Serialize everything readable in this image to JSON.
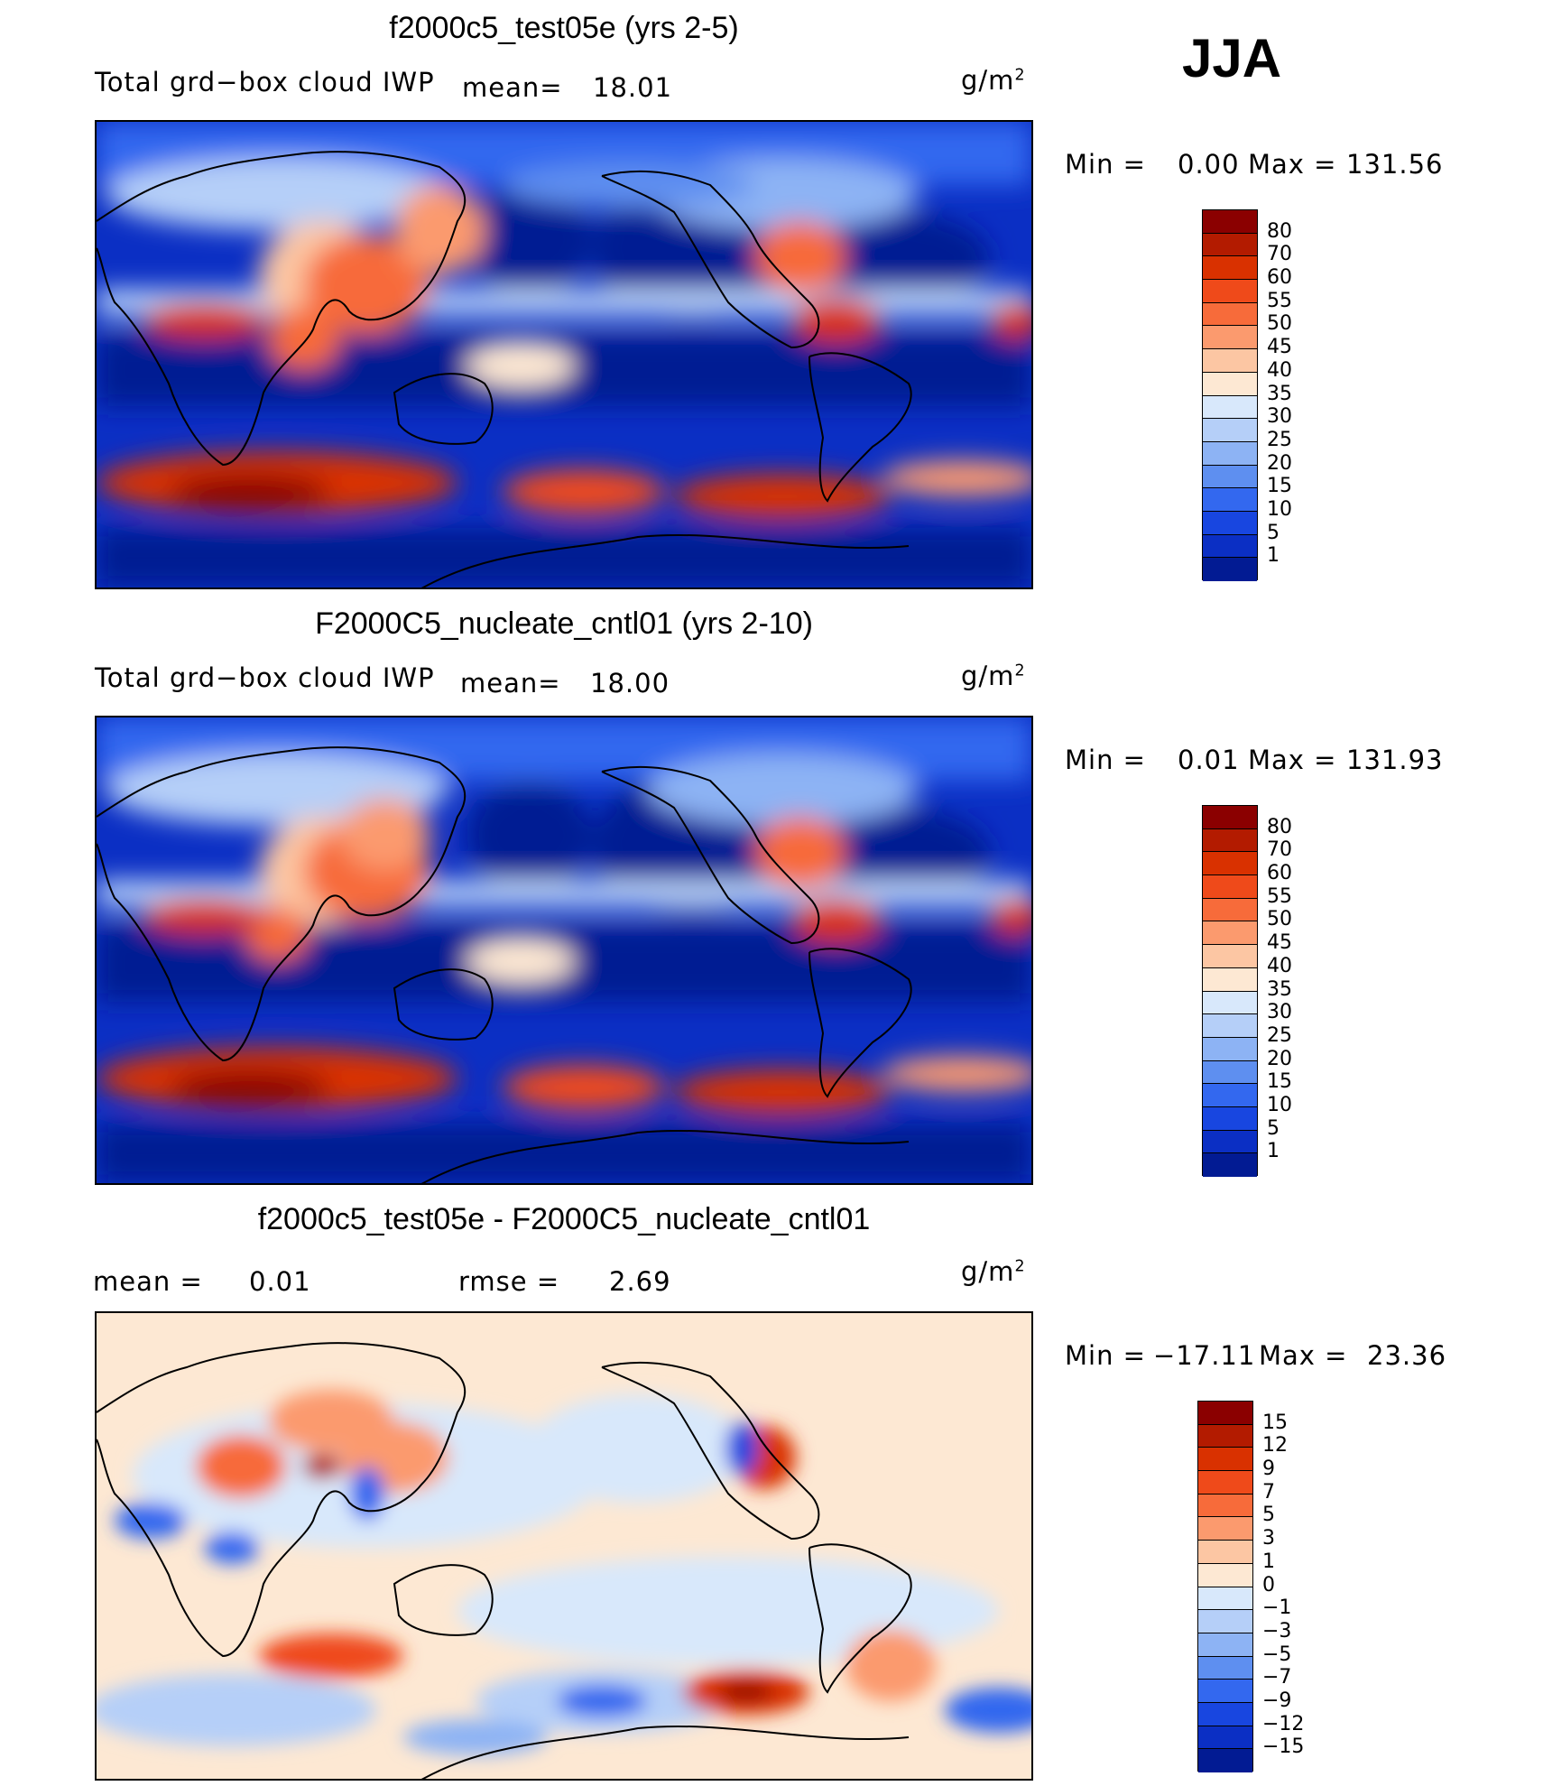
{
  "season": "JJA",
  "panels": [
    {
      "title": "f2000c5_test05e (yrs 2-5)",
      "left_label": "Total grd−box cloud IWP",
      "mean_label": "mean=",
      "mean_value": "18.01",
      "units": "g/m",
      "units_exp": "2",
      "min_label": "Min  =",
      "min_value": "0.00",
      "max_label": "Max  =",
      "max_value": "131.56",
      "type": "field",
      "colorbar": {
        "labels": [
          "80",
          "70",
          "60",
          "55",
          "50",
          "45",
          "40",
          "35",
          "30",
          "25",
          "20",
          "15",
          "10",
          "5",
          "1"
        ],
        "colors": [
          "#8b0000",
          "#b31b00",
          "#d93100",
          "#ef4a1a",
          "#f76b3a",
          "#fb9a6e",
          "#fcc6a3",
          "#fde8d3",
          "#d8e8fb",
          "#b5cff8",
          "#8db3f4",
          "#5e8ff0",
          "#3368ef",
          "#1846e0",
          "#0b2fc4",
          "#021b93"
        ]
      }
    },
    {
      "title": "F2000C5_nucleate_cntl01 (yrs 2-10)",
      "left_label": "Total grd−box cloud IWP",
      "mean_label": "mean=",
      "mean_value": "18.00",
      "units": "g/m",
      "units_exp": "2",
      "min_label": "Min  =",
      "min_value": "0.01",
      "max_label": "Max  =",
      "max_value": "131.93",
      "type": "field",
      "colorbar": {
        "labels": [
          "80",
          "70",
          "60",
          "55",
          "50",
          "45",
          "40",
          "35",
          "30",
          "25",
          "20",
          "15",
          "10",
          "5",
          "1"
        ],
        "colors": [
          "#8b0000",
          "#b31b00",
          "#d93100",
          "#ef4a1a",
          "#f76b3a",
          "#fb9a6e",
          "#fcc6a3",
          "#fde8d3",
          "#d8e8fb",
          "#b5cff8",
          "#8db3f4",
          "#5e8ff0",
          "#3368ef",
          "#1846e0",
          "#0b2fc4",
          "#021b93"
        ]
      }
    },
    {
      "title": "f2000c5_test05e - F2000C5_nucleate_cntl01",
      "mean_label": "mean  =",
      "mean_value": "0.01",
      "rmse_label": "rmse  =",
      "rmse_value": "2.69",
      "units": "g/m",
      "units_exp": "2",
      "min_label": "Min  =",
      "min_value": "−17.11",
      "max_label": "Max  =",
      "max_value": "23.36",
      "type": "diff",
      "colorbar": {
        "labels": [
          "15",
          "12",
          "9",
          "7",
          "5",
          "3",
          "1",
          "0",
          "−1",
          "−3",
          "−5",
          "−7",
          "−9",
          "−12",
          "−15"
        ],
        "colors": [
          "#8b0000",
          "#b31b00",
          "#d93100",
          "#ef4a1a",
          "#f76b3a",
          "#fb9a6e",
          "#fcc6a3",
          "#fde8d3",
          "#d8e8fb",
          "#b5cff8",
          "#8db3f4",
          "#5e8ff0",
          "#3368ef",
          "#1846e0",
          "#0b2fc4",
          "#021b93"
        ]
      }
    }
  ]
}
